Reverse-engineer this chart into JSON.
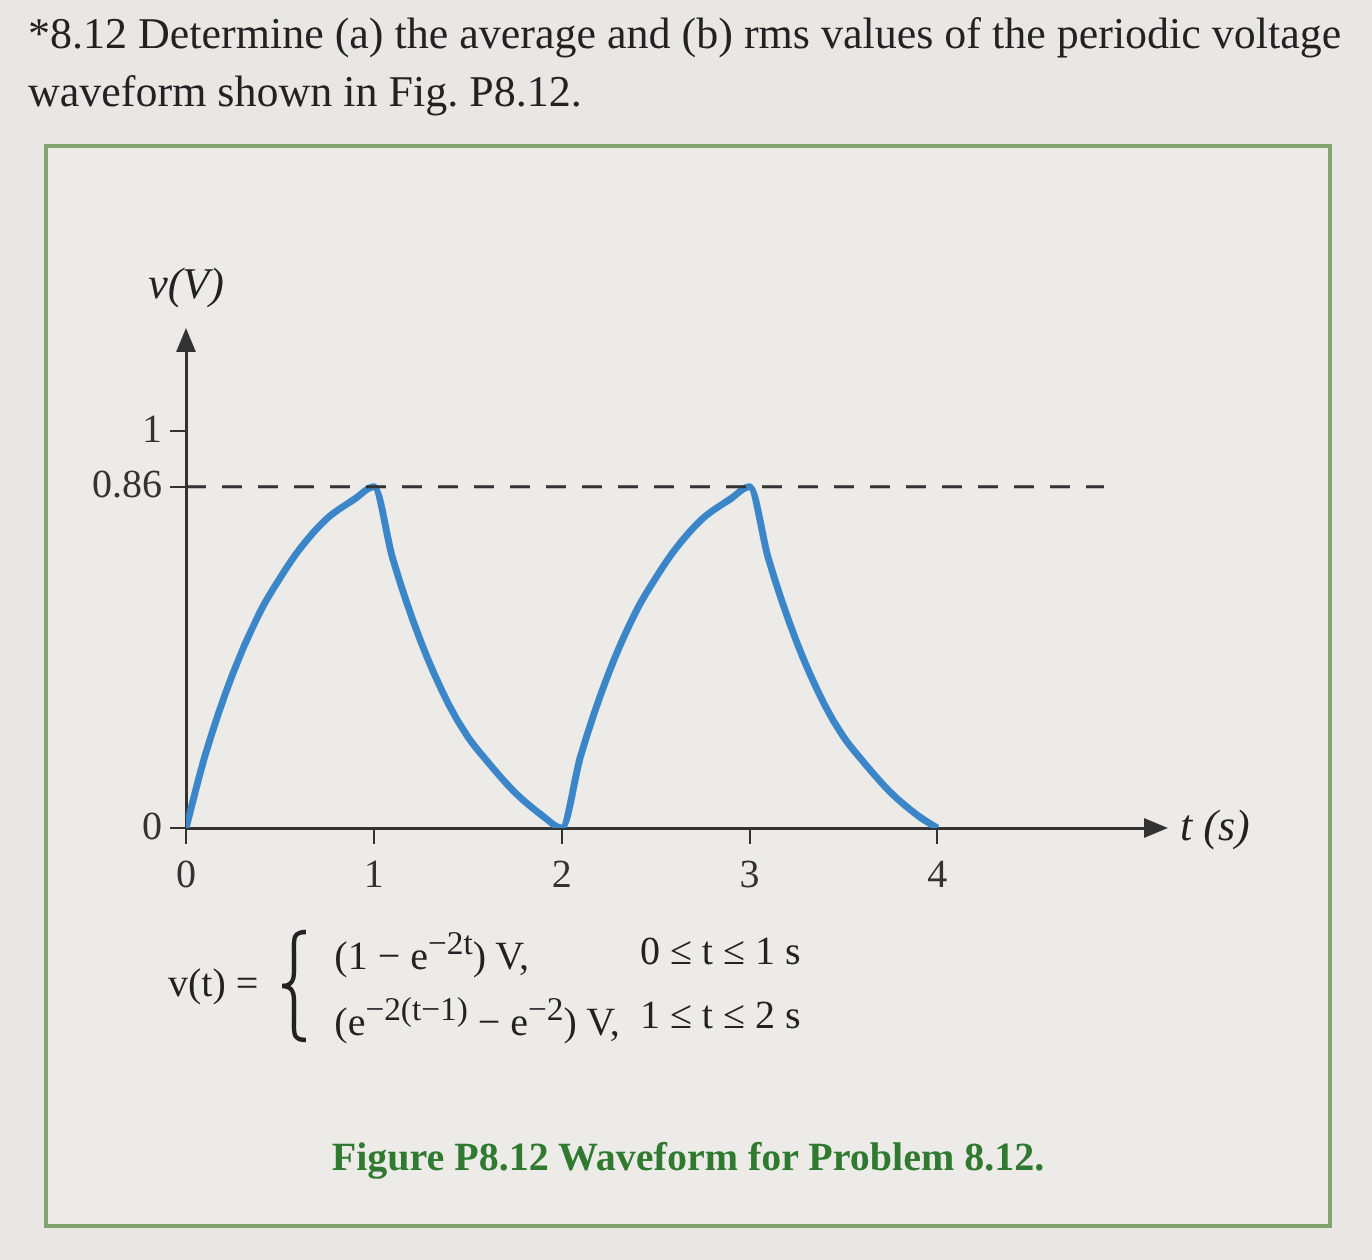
{
  "chart_data": {
    "type": "line",
    "title": "*8.12 Determine (a) the average and (b) rms values of the periodic voltage waveform shown in Fig. P8.12.",
    "xlabel": "t (s)",
    "ylabel": "v(V)",
    "xlim": [
      0,
      5.1
    ],
    "ylim": [
      0,
      1.2
    ],
    "xticks": [
      0,
      1,
      2,
      3,
      4
    ],
    "yticks": [
      0,
      0.86,
      1
    ],
    "grid": false,
    "legend": false,
    "marker": "none",
    "line_style": "solid",
    "ref_lines": [
      {
        "axis": "y",
        "value": 0.86,
        "line_style": "dashed",
        "color": "#333333"
      }
    ],
    "series": [
      {
        "color": "#3a86c8",
        "x": [
          0,
          0.1,
          0.25,
          0.4,
          0.5,
          0.6,
          0.75,
          0.9,
          1,
          1.1,
          1.25,
          1.4,
          1.5,
          1.6,
          1.75,
          1.9,
          2,
          2.1,
          2.25,
          2.4,
          2.5,
          2.6,
          2.75,
          2.9,
          3,
          3.1,
          3.25,
          3.4,
          3.5,
          3.6,
          3.75,
          3.9,
          4
        ],
        "values": [
          0,
          0.18,
          0.39,
          0.55,
          0.63,
          0.7,
          0.78,
          0.83,
          0.86,
          0.68,
          0.47,
          0.31,
          0.23,
          0.17,
          0.09,
          0.03,
          0,
          0.18,
          0.39,
          0.55,
          0.63,
          0.7,
          0.78,
          0.83,
          0.86,
          0.68,
          0.47,
          0.31,
          0.23,
          0.17,
          0.09,
          0.03,
          0
        ]
      }
    ],
    "annotations": [
      "v(t) =",
      "(1 − e$^{−2t}$) V,",
      "0 ≤ t ≤ 1 s",
      "(e$^{−2(t−1)}$ − e$^{−2}$) V,",
      "1 ≤ t ≤ 2 s",
      "Figure P8.12 Waveform for Problem 8.12."
    ]
  }
}
